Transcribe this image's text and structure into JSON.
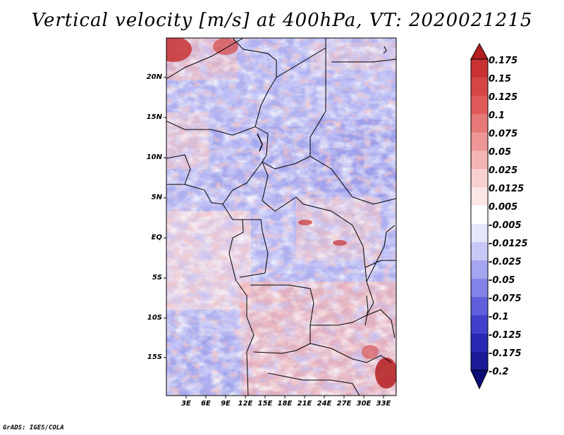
{
  "title": "Vertical velocity [m/s] at 400hPa, VT: 2020021215",
  "footer": "GrADS: IGES/COLA",
  "map": {
    "lon_range": [
      0,
      35
    ],
    "lat_range": [
      -20,
      25
    ],
    "lat_ticks": [
      "20N",
      "15N",
      "10N",
      "5N",
      "EQ",
      "5S",
      "10S",
      "15S"
    ],
    "lon_ticks": [
      "3E",
      "6E",
      "9E",
      "12E",
      "15E",
      "18E",
      "21E",
      "24E",
      "27E",
      "30E",
      "33E"
    ]
  },
  "colorbar": {
    "labels": [
      "0.175",
      "0.15",
      "0.125",
      "0.1",
      "0.075",
      "0.05",
      "0.025",
      "0.0125",
      "0.005",
      "-0.005",
      "-0.0125",
      "-0.025",
      "-0.05",
      "-0.075",
      "-0.1",
      "-0.125",
      "-0.175",
      "-0.2"
    ],
    "colors": [
      "#b41e1e",
      "#c83232",
      "#d44646",
      "#e05a5a",
      "#e67878",
      "#ee9696",
      "#f4b4b4",
      "#f8d0d0",
      "#fce6e6",
      "#ffffff",
      "#e6e6fc",
      "#c8c8f6",
      "#a5a5f0",
      "#8282e8",
      "#5f5fdc",
      "#4040cc",
      "#2828b4",
      "#1a1a96",
      "#0c0c78"
    ]
  }
}
